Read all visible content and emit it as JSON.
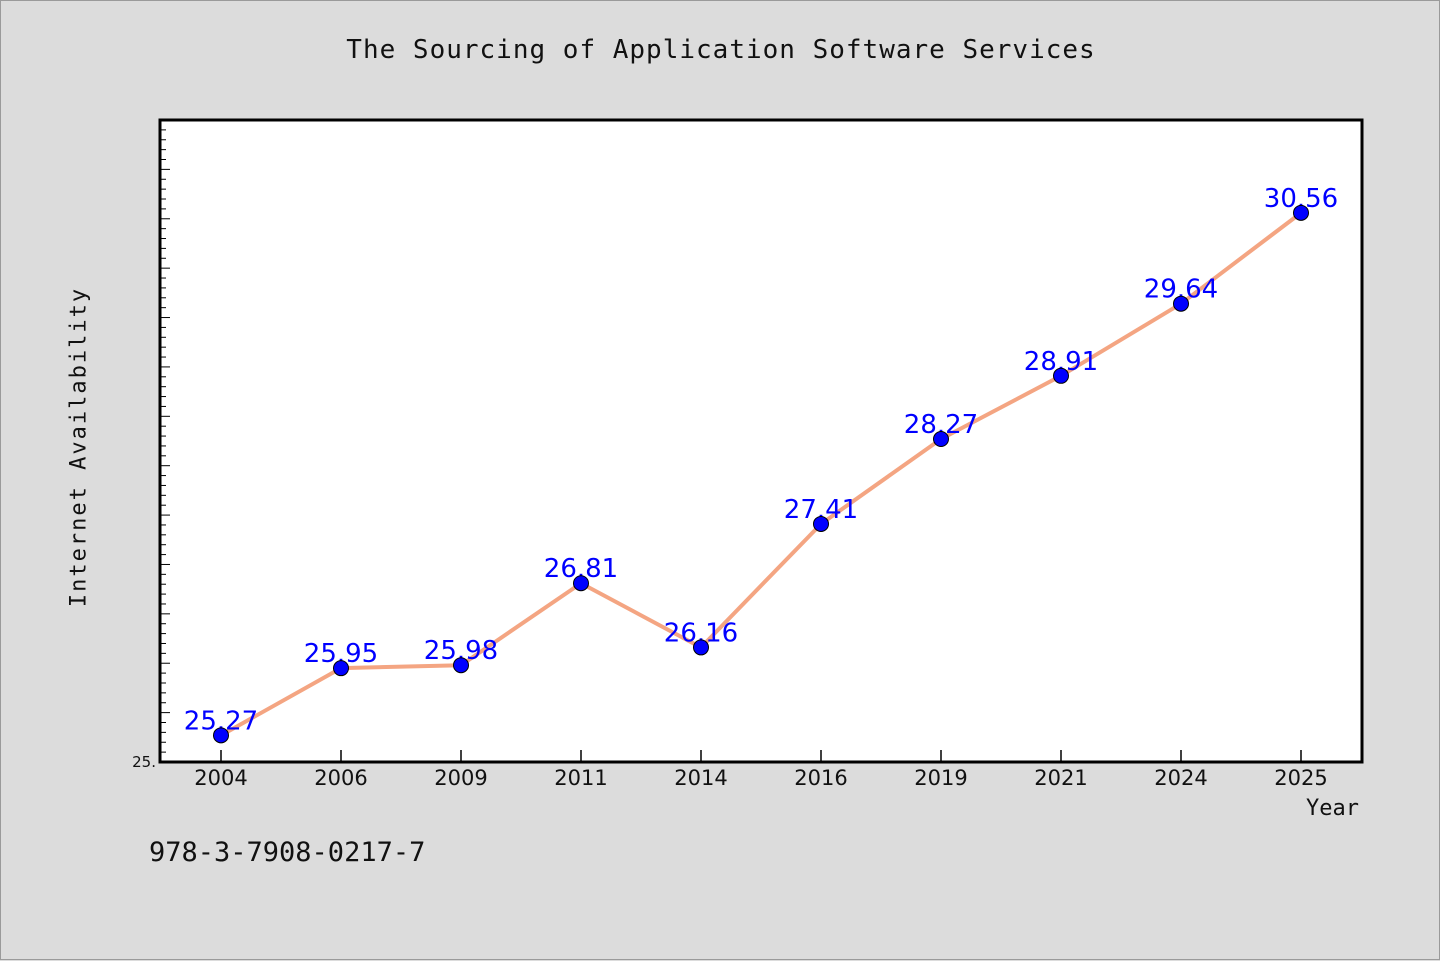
{
  "chart_data": {
    "type": "line",
    "title": "The Sourcing of Application Software Services",
    "xlabel": "Year",
    "ylabel": "Internet Availability",
    "categories": [
      "2004",
      "2006",
      "2009",
      "2011",
      "2014",
      "2016",
      "2019",
      "2021",
      "2024",
      "2025"
    ],
    "series": [
      {
        "values": [
          25.27,
          25.95,
          25.98,
          26.81,
          26.16,
          27.41,
          28.27,
          28.91,
          29.64,
          30.56
        ],
        "data_labels": [
          "25.27",
          "25.95",
          "25.98",
          "26.81",
          "26.16",
          "27.41",
          "28.27",
          "28.91",
          "29.64",
          "30.56"
        ]
      }
    ],
    "ylim": [
      25.0,
      31.5
    ],
    "y_tick_label": "25.",
    "grid": false,
    "colors": {
      "line": "#f4a582",
      "marker": "#0000ff",
      "label": "#0000ff",
      "background": "#dcdcdc",
      "plot_bg": "#ffffff"
    }
  },
  "footer": {
    "code": "978-3-7908-0217-7"
  }
}
